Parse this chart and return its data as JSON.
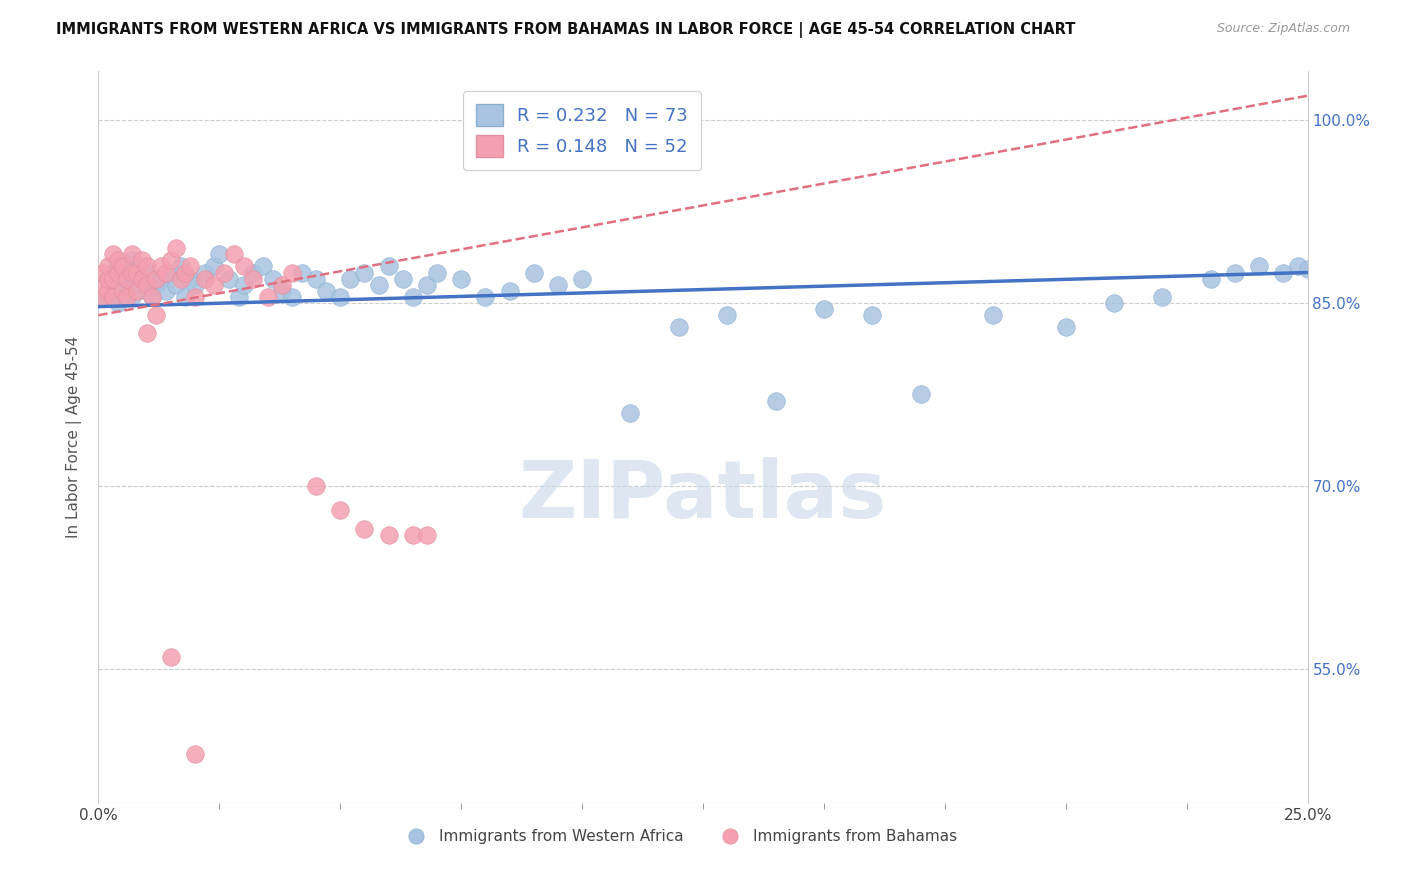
{
  "title": "IMMIGRANTS FROM WESTERN AFRICA VS IMMIGRANTS FROM BAHAMAS IN LABOR FORCE | AGE 45-54 CORRELATION CHART",
  "source": "Source: ZipAtlas.com",
  "ylabel": "In Labor Force | Age 45-54",
  "yticks": [
    "55.0%",
    "70.0%",
    "85.0%",
    "100.0%"
  ],
  "ytick_values": [
    0.55,
    0.7,
    0.85,
    1.0
  ],
  "xlim": [
    0.0,
    0.25
  ],
  "ylim": [
    0.44,
    1.04
  ],
  "legend_r_blue": "0.232",
  "legend_n_blue": "73",
  "legend_r_pink": "0.148",
  "legend_n_pink": "52",
  "blue_scatter_x": [
    0.001,
    0.002,
    0.002,
    0.003,
    0.003,
    0.004,
    0.004,
    0.005,
    0.005,
    0.006,
    0.006,
    0.007,
    0.007,
    0.008,
    0.009,
    0.01,
    0.01,
    0.011,
    0.012,
    0.013,
    0.014,
    0.015,
    0.016,
    0.017,
    0.018,
    0.019,
    0.02,
    0.022,
    0.024,
    0.025,
    0.027,
    0.029,
    0.03,
    0.032,
    0.034,
    0.036,
    0.038,
    0.04,
    0.042,
    0.045,
    0.047,
    0.05,
    0.052,
    0.055,
    0.058,
    0.06,
    0.063,
    0.065,
    0.068,
    0.07,
    0.075,
    0.08,
    0.085,
    0.09,
    0.095,
    0.1,
    0.11,
    0.12,
    0.13,
    0.14,
    0.15,
    0.16,
    0.17,
    0.185,
    0.2,
    0.21,
    0.22,
    0.23,
    0.235,
    0.24,
    0.245,
    0.248,
    0.25
  ],
  "blue_scatter_y": [
    0.855,
    0.86,
    0.87,
    0.865,
    0.875,
    0.85,
    0.88,
    0.855,
    0.87,
    0.86,
    0.875,
    0.855,
    0.885,
    0.87,
    0.865,
    0.86,
    0.875,
    0.855,
    0.865,
    0.87,
    0.86,
    0.875,
    0.865,
    0.88,
    0.855,
    0.87,
    0.865,
    0.875,
    0.88,
    0.89,
    0.87,
    0.855,
    0.865,
    0.875,
    0.88,
    0.87,
    0.86,
    0.855,
    0.875,
    0.87,
    0.86,
    0.855,
    0.87,
    0.875,
    0.865,
    0.88,
    0.87,
    0.855,
    0.865,
    0.875,
    0.87,
    0.855,
    0.86,
    0.875,
    0.865,
    0.87,
    0.76,
    0.83,
    0.84,
    0.77,
    0.845,
    0.84,
    0.775,
    0.84,
    0.83,
    0.85,
    0.855,
    0.87,
    0.875,
    0.88,
    0.875,
    0.88,
    0.878
  ],
  "pink_scatter_x": [
    0.001,
    0.001,
    0.001,
    0.002,
    0.002,
    0.002,
    0.003,
    0.003,
    0.003,
    0.004,
    0.004,
    0.005,
    0.005,
    0.006,
    0.006,
    0.007,
    0.007,
    0.008,
    0.008,
    0.009,
    0.009,
    0.01,
    0.01,
    0.011,
    0.012,
    0.013,
    0.014,
    0.015,
    0.016,
    0.017,
    0.018,
    0.019,
    0.02,
    0.022,
    0.024,
    0.026,
    0.028,
    0.03,
    0.032,
    0.035,
    0.038,
    0.04,
    0.045,
    0.05,
    0.055,
    0.06,
    0.065,
    0.068,
    0.01,
    0.012,
    0.015,
    0.02
  ],
  "pink_scatter_y": [
    0.855,
    0.865,
    0.875,
    0.86,
    0.87,
    0.88,
    0.855,
    0.87,
    0.89,
    0.875,
    0.885,
    0.86,
    0.88,
    0.87,
    0.855,
    0.875,
    0.89,
    0.86,
    0.875,
    0.87,
    0.885,
    0.865,
    0.88,
    0.855,
    0.87,
    0.88,
    0.875,
    0.885,
    0.895,
    0.87,
    0.875,
    0.88,
    0.855,
    0.87,
    0.865,
    0.875,
    0.89,
    0.88,
    0.87,
    0.855,
    0.865,
    0.875,
    0.7,
    0.68,
    0.665,
    0.66,
    0.66,
    0.66,
    0.825,
    0.84,
    0.56,
    0.48
  ],
  "blue_color": "#a8c4e0",
  "pink_color": "#f4a0b0",
  "blue_line_color": "#4472c4",
  "pink_line_color": "#e07080",
  "watermark_text": "ZIPatlas",
  "watermark_color": "#c8d8e8"
}
